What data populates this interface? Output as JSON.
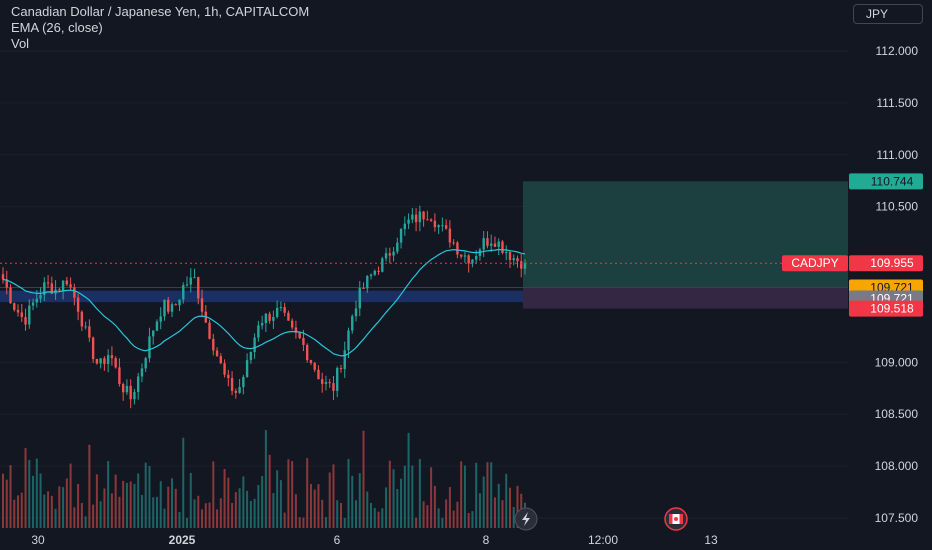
{
  "legend": {
    "title": "Canadian Dollar / Japanese Yen, 1h, CAPITALCOM",
    "indicator": "EMA (26, close)",
    "volume": "Vol"
  },
  "currency": "JPY",
  "colors": {
    "background": "#131722",
    "up": "#26a69a",
    "down": "#ef5350",
    "ema": "#26c6da",
    "profit_zone": "#1f4f4a",
    "loss_zone": "#3b2a4a",
    "support_zone": "#1e3a78",
    "last_price": "#f23645",
    "entry": "#f7a600",
    "neutral": "#787b86"
  },
  "chart_data": {
    "type": "candlestick",
    "symbol": "CADJPY",
    "interval": "1h",
    "ylim": [
      107.45,
      112.25
    ],
    "y_ticks": [
      "112.000",
      "111.500",
      "111.000",
      "110.500",
      "109.000",
      "108.500",
      "108.000",
      "107.500"
    ],
    "x_ticks": [
      {
        "label": "30",
        "bold": false
      },
      {
        "label": "2025",
        "bold": true
      },
      {
        "label": "6",
        "bold": false
      },
      {
        "label": "8",
        "bold": false
      },
      {
        "label": "12:00",
        "bold": false
      },
      {
        "label": "13",
        "bold": false
      }
    ],
    "close_path": [
      109.8,
      109.55,
      109.4,
      109.6,
      109.75,
      109.7,
      109.8,
      109.55,
      109.2,
      108.95,
      109.1,
      108.8,
      108.65,
      108.95,
      109.3,
      109.55,
      109.5,
      109.75,
      109.8,
      109.4,
      109.1,
      108.8,
      108.7,
      109.0,
      109.4,
      109.45,
      109.5,
      109.3,
      109.2,
      109.0,
      108.8,
      108.75,
      109.1,
      109.55,
      109.75,
      109.9,
      110.0,
      110.2,
      110.35,
      110.4,
      110.45,
      110.3,
      110.2,
      110.05,
      110.0,
      110.15,
      110.2,
      110.1,
      110.0,
      109.955
    ],
    "candles_count": 140,
    "support_zone": [
      109.58,
      109.69
    ],
    "position": {
      "entry": "109.721",
      "take_profit": "110.744",
      "stop_loss": "109.518",
      "entry_label": "109.721",
      "neutral_label": "109.721"
    },
    "last_price": {
      "symbol": "CADJPY",
      "value": "109.955"
    }
  }
}
